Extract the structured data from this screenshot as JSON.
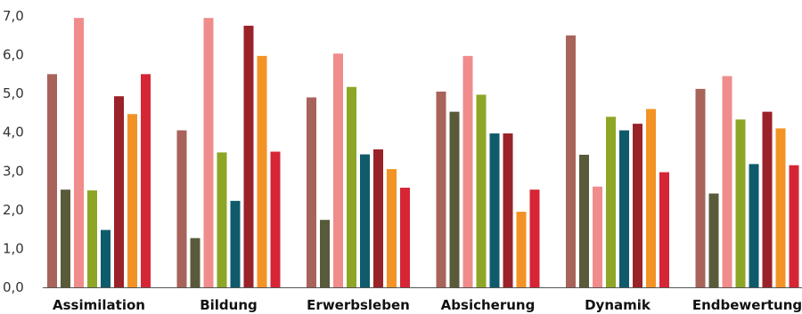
{
  "chart_data": {
    "type": "bar",
    "categories": [
      "Assimilation",
      "Bildung",
      "Erwerbsleben",
      "Absicherung",
      "Dynamik",
      "Endbewertung"
    ],
    "ylim": [
      0,
      7
    ],
    "yticks": [
      "0,0",
      "1,0",
      "2,0",
      "3,0",
      "4,0",
      "5,0",
      "6,0",
      "7,0"
    ],
    "grid": false,
    "legend": "none",
    "series": [
      {
        "color": "#a8635a",
        "values": [
          5.5,
          4.05,
          4.9,
          5.05,
          6.5,
          5.12
        ]
      },
      {
        "color": "#595a3a",
        "values": [
          2.52,
          1.27,
          1.74,
          4.53,
          3.42,
          2.42
        ]
      },
      {
        "color": "#f08c8c",
        "values": [
          6.95,
          6.95,
          6.03,
          5.97,
          2.6,
          5.45
        ]
      },
      {
        "color": "#8da626",
        "values": [
          2.5,
          3.48,
          5.17,
          4.97,
          4.4,
          4.33
        ]
      },
      {
        "color": "#0f5b6b",
        "values": [
          1.48,
          2.23,
          3.43,
          3.97,
          4.05,
          3.18
        ]
      },
      {
        "color": "#9a2229",
        "values": [
          4.93,
          6.75,
          3.56,
          3.97,
          4.22,
          4.53
        ]
      },
      {
        "color": "#f39325",
        "values": [
          4.47,
          5.97,
          3.05,
          1.95,
          4.6,
          4.1
        ]
      },
      {
        "color": "#d62535",
        "values": [
          5.5,
          3.5,
          2.57,
          2.52,
          2.97,
          3.15
        ]
      }
    ]
  }
}
